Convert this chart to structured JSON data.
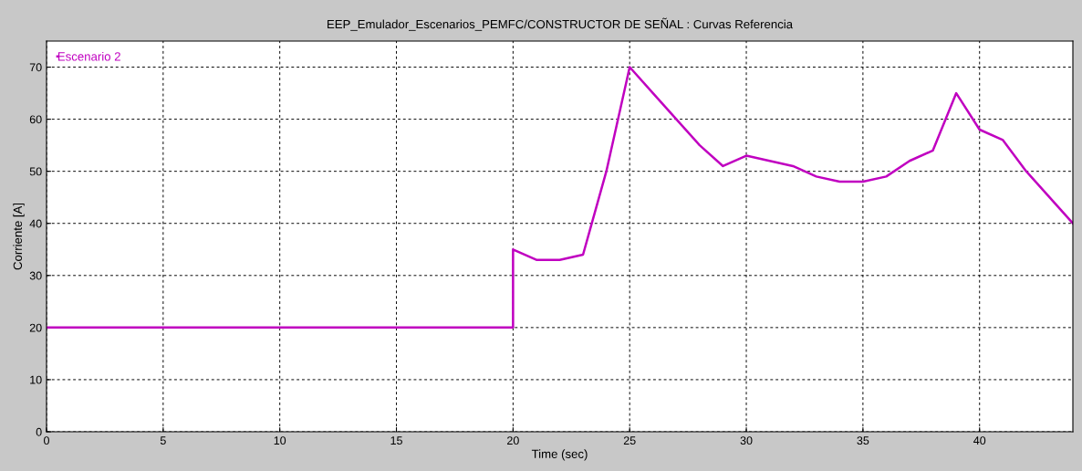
{
  "chart_data": {
    "type": "line",
    "title": "EEP_Emulador_Escenarios_PEMFC/CONSTRUCTOR DE SEÑAL : Curvas Referencia",
    "xlabel": "Time (sec)",
    "ylabel": "Corriente [A]",
    "series": [
      {
        "name": "Escenario 2",
        "color": "#c000c0",
        "x": [
          0,
          20,
          20,
          21,
          22,
          23,
          24,
          25,
          26,
          27,
          28,
          29,
          30,
          31,
          32,
          33,
          34,
          35,
          36,
          37,
          38,
          39,
          40,
          41,
          42,
          44
        ],
        "values": [
          20,
          20,
          35,
          33,
          33,
          34,
          50,
          70,
          65,
          60,
          55,
          51,
          53,
          52,
          51,
          49,
          48,
          48,
          49,
          52,
          54,
          65,
          58,
          56,
          50,
          40
        ]
      }
    ],
    "xlim": [
      0,
      44
    ],
    "ylim": [
      0,
      75
    ],
    "xticks": [
      0,
      5,
      10,
      15,
      20,
      25,
      30,
      35,
      40
    ],
    "yticks": [
      0,
      10,
      20,
      30,
      40,
      50,
      60,
      70
    ],
    "grid": true,
    "legend": "top left",
    "line_style": "solid",
    "marker": "none"
  }
}
